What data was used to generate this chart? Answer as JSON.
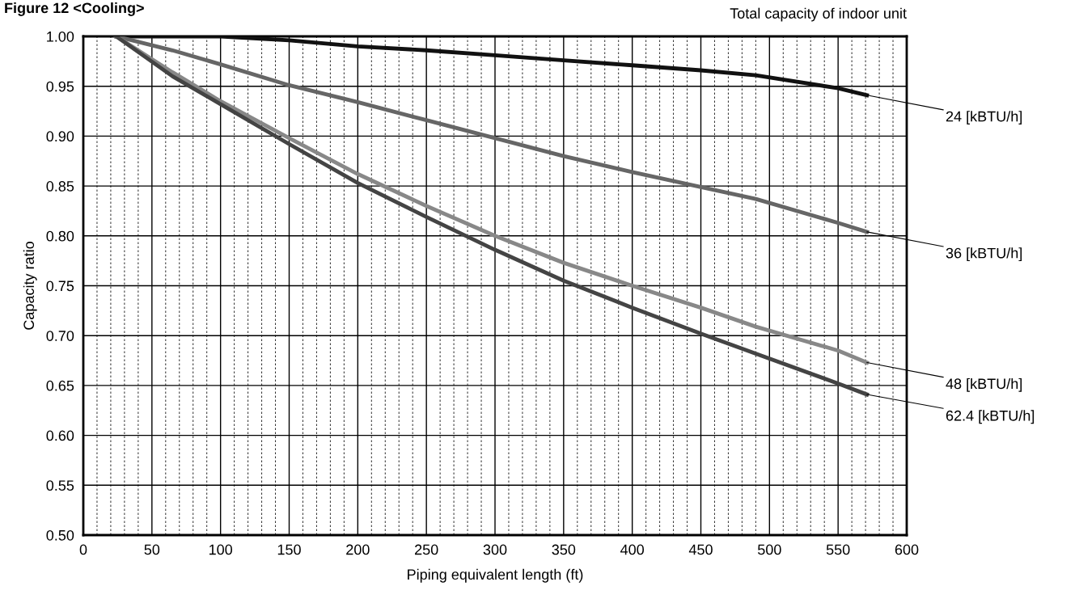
{
  "chart_data": {
    "type": "line",
    "title": "Figure 12 <Cooling>",
    "legend_title": "Total capacity of indoor unit",
    "xlabel": "Piping equivalent length (ft)",
    "ylabel": "Capacity ratio",
    "xlim": [
      0,
      600
    ],
    "xticks": [
      0,
      50,
      100,
      150,
      200,
      250,
      300,
      350,
      400,
      450,
      500,
      550,
      600
    ],
    "ylim": [
      0.5,
      1.0
    ],
    "yticks": [
      {
        "value": 0.5,
        "label": "0.50"
      },
      {
        "value": 0.55,
        "label": "0.55"
      },
      {
        "value": 0.6,
        "label": "0.60"
      },
      {
        "value": 0.65,
        "label": "0.65"
      },
      {
        "value": 0.7,
        "label": "0.70"
      },
      {
        "value": 0.75,
        "label": "0.75"
      },
      {
        "value": 0.8,
        "label": "0.80"
      },
      {
        "value": 0.85,
        "label": "0.85"
      },
      {
        "value": 0.9,
        "label": "0.90"
      },
      {
        "value": 0.95,
        "label": "0.95"
      },
      {
        "value": 1.0,
        "label": "1.00"
      }
    ],
    "grid": true,
    "legend": false,
    "marker": "none",
    "line_style": "solid",
    "x": [
      24,
      65,
      100,
      150,
      200,
      250,
      300,
      350,
      400,
      450,
      490,
      550,
      571
    ],
    "series": [
      {
        "name": "24 [kBTU/h]",
        "color": "#111111",
        "values": [
          1.0,
          1.0,
          1.0,
          0.996,
          0.99,
          0.986,
          0.981,
          0.976,
          0.971,
          0.966,
          0.961,
          0.948,
          0.941
        ]
      },
      {
        "name": "36 [kBTU/h]",
        "color": "#666666",
        "values": [
          1.0,
          0.986,
          0.972,
          0.951,
          0.934,
          0.916,
          0.898,
          0.88,
          0.864,
          0.849,
          0.837,
          0.813,
          0.804
        ]
      },
      {
        "name": "48 [kBTU/h]",
        "color": "#888888",
        "values": [
          1.0,
          0.964,
          0.935,
          0.898,
          0.862,
          0.83,
          0.8,
          0.773,
          0.75,
          0.728,
          0.709,
          0.685,
          0.673
        ]
      },
      {
        "name": "62.4 [kBTU/h]",
        "color": "#444444",
        "values": [
          1.0,
          0.96,
          0.932,
          0.892,
          0.853,
          0.819,
          0.786,
          0.755,
          0.728,
          0.702,
          0.682,
          0.652,
          0.641
        ]
      }
    ]
  }
}
